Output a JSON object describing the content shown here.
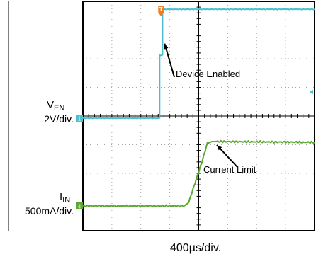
{
  "chart_data": {
    "type": "line",
    "title": "",
    "xlabel": "400µs/div.",
    "xlim": [
      0,
      8
    ],
    "grid": true,
    "grid_divisions": {
      "x": 8,
      "y": 8
    },
    "series": [
      {
        "name": "V_EN",
        "color": "#4cbfce",
        "scale": "2V/div.",
        "ground_marker": "1",
        "points": [
          [
            0,
            0
          ],
          [
            2.65,
            0
          ],
          [
            2.65,
            2.2
          ],
          [
            2.75,
            2.2
          ],
          [
            2.75,
            3.8
          ],
          [
            8,
            3.8
          ]
        ]
      },
      {
        "name": "I_IN",
        "color": "#5aa830",
        "scale": "500mA/div.",
        "ground_marker": "4",
        "points": [
          [
            0,
            0
          ],
          [
            3.5,
            0
          ],
          [
            3.65,
            0.12
          ],
          [
            4.1,
            1.5
          ],
          [
            4.3,
            2.2
          ],
          [
            4.5,
            2.25
          ],
          [
            8,
            2.22
          ]
        ]
      }
    ],
    "annotations": [
      {
        "text": "Device Enabled",
        "target": [
          2.75,
          2.6
        ]
      },
      {
        "text": "Current Limit",
        "target": [
          4.55,
          2.2
        ]
      }
    ],
    "labels": {
      "ven_main": "V",
      "ven_sub": "EN",
      "ven_scale": "2V/div.",
      "iin_main": "I",
      "iin_sub": "IN",
      "iin_scale": "500mA/div.",
      "trigger_marker": "T"
    },
    "colors": {
      "ven": "#4cbfce",
      "iin": "#5aa830",
      "trigger": "#f07c1e",
      "grid": "#a8a8a8",
      "frame": "#000000"
    }
  }
}
